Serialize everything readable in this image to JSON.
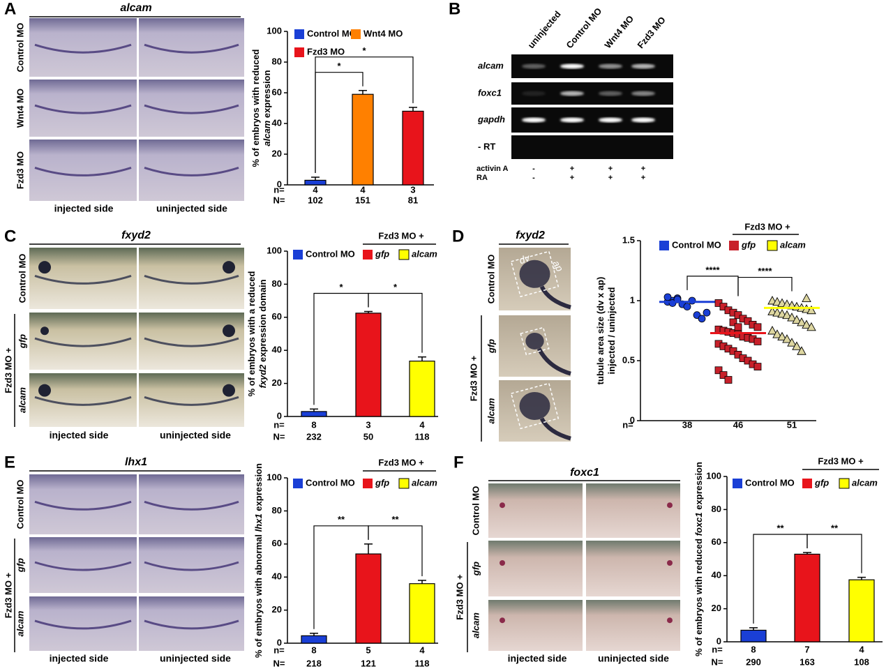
{
  "panels": [
    {
      "letter": "A",
      "title": "alcam",
      "rows": [
        {
          "label": "Control MO"
        },
        {
          "label": "Wnt4 MO"
        },
        {
          "label": "Fzd3 MO"
        }
      ],
      "columns": [
        "injected side",
        "uninjected side"
      ]
    },
    {
      "letter": "C",
      "title": "fxyd2",
      "rows": [
        {
          "label": "Control MO"
        },
        {
          "label": "gfp",
          "italic": true
        },
        {
          "label": "alcam",
          "italic": true
        }
      ],
      "group": "Fzd3 MO +",
      "columns": [
        "injected side",
        "uninjected side"
      ]
    },
    {
      "letter": "D",
      "title": "fxyd2",
      "rows": [
        {
          "label": "Control MO"
        },
        {
          "label": "gfp",
          "italic": true
        },
        {
          "label": "alcam",
          "italic": true
        }
      ],
      "group": "Fzd3 MO +",
      "box_labels": [
        "dv",
        "ap"
      ]
    },
    {
      "letter": "E",
      "title": "lhx1",
      "rows": [
        {
          "label": "Control MO"
        },
        {
          "label": "gfp",
          "italic": true
        },
        {
          "label": "alcam",
          "italic": true
        }
      ],
      "group": "Fzd3 MO +",
      "columns": [
        "injected side",
        "uninjected side"
      ]
    },
    {
      "letter": "F",
      "title": "foxc1",
      "rows": [
        {
          "label": "Control MO"
        },
        {
          "label": "gfp",
          "italic": true
        },
        {
          "label": "alcam",
          "italic": true
        }
      ],
      "group": "Fzd3 MO +",
      "columns": [
        "injected side",
        "uninjected side"
      ]
    }
  ],
  "gel": {
    "letter": "B",
    "lanes": [
      "uninjected",
      "Control MO",
      "Wnt4 MO",
      "Fzd3 MO"
    ],
    "rows": [
      {
        "label": "alcam",
        "italic": true
      },
      {
        "label": "foxc1",
        "italic": true
      },
      {
        "label": "gapdh",
        "italic": true
      },
      {
        "label": "- RT"
      }
    ],
    "conditions": [
      {
        "label": "activin A",
        "signs": [
          "-",
          "+",
          "+",
          "+"
        ]
      },
      {
        "label": "RA",
        "signs": [
          "-",
          "+",
          "+",
          "+"
        ]
      }
    ]
  },
  "chart_data": [
    {
      "type": "bar",
      "ylabel": [
        [
          {
            "text": "% of embryos with reduced"
          }
        ],
        [
          {
            "text": "alcam",
            "italic": true
          },
          {
            "text": "expression"
          }
        ]
      ],
      "categories": [
        "Control MO",
        "Wnt4 MO",
        "Fzd3 MO"
      ],
      "values": [
        3,
        59,
        48
      ],
      "errors": [
        2,
        2.5,
        2.5
      ],
      "colors": [
        "#1a3fd6",
        "#ff8000",
        "#e8141b"
      ],
      "ylim": [
        0,
        100
      ],
      "yticks": [
        0,
        20,
        40,
        60,
        80,
        100
      ],
      "n_label": "n=",
      "n": [
        4,
        4,
        3
      ],
      "N_label": "N=",
      "N": [
        102,
        151,
        81
      ],
      "significance": [
        {
          "from": 0,
          "to": 1,
          "label": "*"
        },
        {
          "from": 0,
          "to": 2,
          "label": "*"
        }
      ]
    },
    {
      "type": "bar",
      "ylabel": [
        [
          {
            "text": "% of embryos with a reduced"
          }
        ],
        [
          {
            "text": "fxyd2",
            "italic": true
          },
          {
            "text": "expression domain"
          }
        ]
      ],
      "categories": [
        "Control MO",
        "gfp",
        "alcam"
      ],
      "italic_categories": [
        false,
        true,
        true
      ],
      "group": "Fzd3 MO +",
      "values": [
        3,
        62.5,
        33.5
      ],
      "errors": [
        1.5,
        1,
        2.5
      ],
      "colors": [
        "#1a3fd6",
        "#e8141b",
        "#ffff00"
      ],
      "ylim": [
        0,
        100
      ],
      "yticks": [
        0,
        20,
        40,
        60,
        80,
        100
      ],
      "n_label": "n=",
      "n": [
        8,
        3,
        4
      ],
      "N_label": "N=",
      "N": [
        232,
        50,
        118
      ],
      "significance": [
        {
          "from": 0,
          "to": 1,
          "label": "*"
        },
        {
          "from": 1,
          "to": 2,
          "label": "*"
        }
      ]
    },
    {
      "type": "scatter",
      "ylabel": [
        [
          {
            "text": "tubule area size (dv x ap)"
          }
        ],
        [
          {
            "text": "injected / uninjected"
          }
        ]
      ],
      "group": "Fzd3 MO +",
      "ylim": [
        0,
        1.5
      ],
      "yticks": [
        0,
        0.5,
        1,
        1.5
      ],
      "n_label": "n=",
      "n": [
        38,
        46,
        51
      ],
      "series": [
        {
          "name": "Control MO",
          "color": "#1a3fd6",
          "marker": "circle",
          "mean_color": "#1a3fd6",
          "mean": 0.99,
          "values": [
            0.99,
            1.0,
            1.02,
            0.97,
            0.95,
            1.0,
            0.88,
            0.85,
            0.9,
            1.03,
            0.98,
            1.01
          ]
        },
        {
          "name": "gfp",
          "italic": true,
          "color": "#c8202a",
          "marker": "square",
          "mean_color": "#e8141b",
          "mean": 0.73,
          "values": [
            0.98,
            0.95,
            0.92,
            0.9,
            0.88,
            0.85,
            0.83,
            0.8,
            0.78,
            0.76,
            0.75,
            0.74,
            0.73,
            0.72,
            0.7,
            0.69,
            0.68,
            0.66,
            0.64,
            0.62,
            0.6,
            0.58,
            0.55,
            0.52,
            0.5,
            0.47,
            0.45,
            0.42,
            0.38,
            0.34,
            0.82,
            0.78
          ]
        },
        {
          "name": "alcam",
          "italic": true,
          "color": "#ddd6a0",
          "marker": "triangle",
          "mean_color": "#ffff00",
          "mean": 0.94,
          "values": [
            1.0,
            0.99,
            0.98,
            0.97,
            0.96,
            0.95,
            0.94,
            0.93,
            0.92,
            0.91,
            0.9,
            0.89,
            0.88,
            0.86,
            0.84,
            0.82,
            0.8,
            0.78,
            0.75,
            0.72,
            0.7,
            0.68,
            0.65,
            0.62,
            0.58,
            1.02
          ]
        }
      ],
      "significance": [
        {
          "from": 0,
          "to": 1,
          "label": "****"
        },
        {
          "from": 1,
          "to": 2,
          "label": "****"
        }
      ]
    },
    {
      "type": "bar",
      "ylabel": [
        [
          {
            "text": "% of embryos with abnormal"
          },
          {
            "text": "lhx1",
            "italic": true
          },
          {
            "text": "expression"
          }
        ]
      ],
      "categories": [
        "Control MO",
        "gfp",
        "alcam"
      ],
      "italic_categories": [
        false,
        true,
        true
      ],
      "group": "Fzd3 MO +",
      "values": [
        4.5,
        54,
        36
      ],
      "errors": [
        1.5,
        6,
        2
      ],
      "colors": [
        "#1a3fd6",
        "#e8141b",
        "#ffff00"
      ],
      "ylim": [
        0,
        100
      ],
      "yticks": [
        0,
        20,
        40,
        60,
        80,
        100
      ],
      "n_label": "n=",
      "n": [
        8,
        5,
        4
      ],
      "N_label": "N=",
      "N": [
        218,
        121,
        118
      ],
      "significance": [
        {
          "from": 0,
          "to": 1,
          "label": "**"
        },
        {
          "from": 1,
          "to": 2,
          "label": "**"
        }
      ]
    },
    {
      "type": "bar",
      "ylabel": [
        [
          {
            "text": "% of embryos with reduced"
          },
          {
            "text": "foxc1",
            "italic": true
          },
          {
            "text": "expression"
          }
        ]
      ],
      "categories": [
        "Control MO",
        "gfp",
        "alcam"
      ],
      "italic_categories": [
        false,
        true,
        true
      ],
      "group": "Fzd3 MO +",
      "values": [
        7,
        53,
        37.5
      ],
      "errors": [
        1.5,
        1,
        1.5
      ],
      "colors": [
        "#1a3fd6",
        "#e8141b",
        "#ffff00"
      ],
      "ylim": [
        0,
        100
      ],
      "yticks": [
        0,
        20,
        40,
        60,
        80,
        100
      ],
      "n_label": "n=",
      "n": [
        8,
        7,
        4
      ],
      "N_label": "N=",
      "N": [
        290,
        163,
        108
      ],
      "significance": [
        {
          "from": 0,
          "to": 1,
          "label": "**"
        },
        {
          "from": 1,
          "to": 2,
          "label": "**"
        }
      ]
    }
  ]
}
